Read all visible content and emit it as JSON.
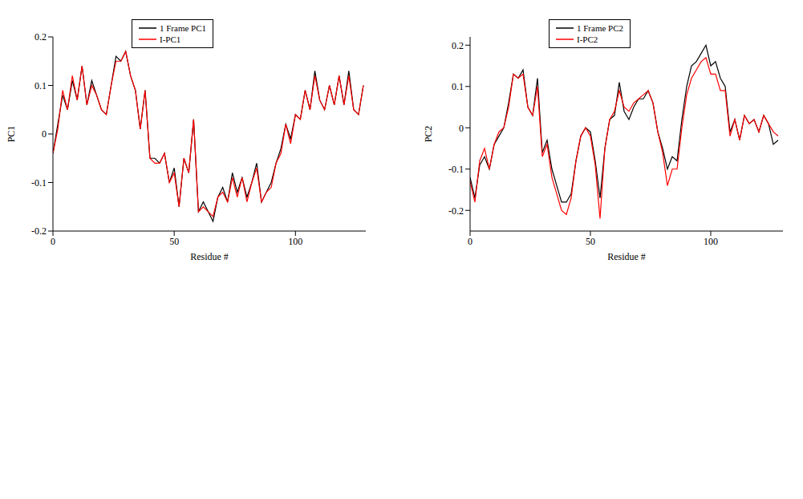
{
  "chart_data": [
    {
      "type": "line",
      "xlabel": "Residue #",
      "ylabel": "PC1",
      "legend": "top",
      "x": [
        0,
        2,
        4,
        6,
        8,
        10,
        12,
        14,
        16,
        18,
        20,
        22,
        24,
        26,
        28,
        30,
        32,
        34,
        36,
        38,
        40,
        42,
        44,
        46,
        48,
        50,
        52,
        54,
        56,
        58,
        60,
        62,
        64,
        66,
        68,
        70,
        72,
        74,
        76,
        78,
        80,
        82,
        84,
        86,
        88,
        90,
        92,
        94,
        96,
        98,
        100,
        102,
        104,
        106,
        108,
        110,
        112,
        114,
        116,
        118,
        120,
        122,
        124,
        126,
        128
      ],
      "xlim": [
        0,
        129
      ],
      "xticks": [
        0,
        50,
        100
      ],
      "ylim": [
        -0.2,
        0.2
      ],
      "yticks": [
        -0.2,
        -0.1,
        0,
        0.1,
        0.2
      ],
      "series": [
        {
          "name": "1 Frame PC1",
          "color": "#000000",
          "values": [
            -0.04,
            0.02,
            0.08,
            0.05,
            0.11,
            0.07,
            0.14,
            0.06,
            0.11,
            0.08,
            0.05,
            0.04,
            0.1,
            0.16,
            0.15,
            0.17,
            0.12,
            0.09,
            0.01,
            0.09,
            -0.05,
            -0.05,
            -0.06,
            -0.04,
            -0.1,
            -0.07,
            -0.15,
            -0.05,
            -0.08,
            0.03,
            -0.16,
            -0.14,
            -0.16,
            -0.18,
            -0.13,
            -0.11,
            -0.14,
            -0.08,
            -0.12,
            -0.09,
            -0.13,
            -0.1,
            -0.06,
            -0.14,
            -0.12,
            -0.1,
            -0.06,
            -0.03,
            0.02,
            -0.01,
            0.04,
            0.03,
            0.09,
            0.05,
            0.13,
            0.07,
            0.05,
            0.1,
            0.06,
            0.12,
            0.06,
            0.13,
            0.05,
            0.04,
            0.1
          ]
        },
        {
          "name": "I-PC1",
          "color": "#ff0000",
          "values": [
            -0.04,
            0.01,
            0.09,
            0.05,
            0.12,
            0.07,
            0.14,
            0.06,
            0.1,
            0.08,
            0.05,
            0.04,
            0.1,
            0.15,
            0.15,
            0.17,
            0.12,
            0.09,
            0.01,
            0.09,
            -0.05,
            -0.06,
            -0.06,
            -0.04,
            -0.1,
            -0.08,
            -0.15,
            -0.05,
            -0.08,
            0.03,
            -0.16,
            -0.15,
            -0.16,
            -0.17,
            -0.13,
            -0.12,
            -0.14,
            -0.09,
            -0.13,
            -0.09,
            -0.14,
            -0.1,
            -0.07,
            -0.14,
            -0.12,
            -0.11,
            -0.06,
            -0.04,
            0.02,
            -0.02,
            0.04,
            0.03,
            0.09,
            0.05,
            0.12,
            0.07,
            0.05,
            0.1,
            0.06,
            0.12,
            0.06,
            0.12,
            0.05,
            0.04,
            0.1
          ]
        }
      ]
    },
    {
      "type": "line",
      "xlabel": "Residue #",
      "ylabel": "PC2",
      "legend": "top",
      "x": [
        0,
        2,
        4,
        6,
        8,
        10,
        12,
        14,
        16,
        18,
        20,
        22,
        24,
        26,
        28,
        30,
        32,
        34,
        36,
        38,
        40,
        42,
        44,
        46,
        48,
        50,
        52,
        54,
        56,
        58,
        60,
        62,
        64,
        66,
        68,
        70,
        72,
        74,
        76,
        78,
        80,
        82,
        84,
        86,
        88,
        90,
        92,
        94,
        96,
        98,
        100,
        102,
        104,
        106,
        108,
        110,
        112,
        114,
        116,
        118,
        120,
        122,
        124,
        126,
        128
      ],
      "xlim": [
        0,
        130
      ],
      "xticks": [
        0,
        50,
        100
      ],
      "ylim": [
        -0.25,
        0.22
      ],
      "yticks": [
        -0.2,
        -0.1,
        0,
        0.1,
        0.2
      ],
      "series": [
        {
          "name": "1 Frame PC2",
          "color": "#000000",
          "values": [
            -0.12,
            -0.17,
            -0.09,
            -0.07,
            -0.1,
            -0.04,
            -0.02,
            0.0,
            0.06,
            0.13,
            0.12,
            0.14,
            0.05,
            0.03,
            0.12,
            -0.06,
            -0.03,
            -0.1,
            -0.14,
            -0.18,
            -0.18,
            -0.16,
            -0.08,
            -0.02,
            0.0,
            -0.01,
            -0.08,
            -0.17,
            -0.05,
            0.02,
            0.03,
            0.11,
            0.04,
            0.02,
            0.05,
            0.07,
            0.07,
            0.09,
            0.06,
            -0.01,
            -0.05,
            -0.1,
            -0.07,
            -0.08,
            0.02,
            0.1,
            0.15,
            0.16,
            0.18,
            0.2,
            0.15,
            0.16,
            0.12,
            0.1,
            -0.01,
            0.02,
            -0.03,
            0.03,
            0.01,
            0.02,
            -0.01,
            0.03,
            0.01,
            -0.04,
            -0.03
          ]
        },
        {
          "name": "I-PC2",
          "color": "#ff0000",
          "values": [
            -0.13,
            -0.18,
            -0.08,
            -0.05,
            -0.1,
            -0.04,
            -0.01,
            0.0,
            0.05,
            0.13,
            0.12,
            0.13,
            0.05,
            0.03,
            0.1,
            -0.07,
            -0.04,
            -0.12,
            -0.16,
            -0.2,
            -0.21,
            -0.17,
            -0.08,
            -0.02,
            0.0,
            -0.02,
            -0.09,
            -0.22,
            -0.05,
            0.02,
            0.04,
            0.09,
            0.05,
            0.04,
            0.06,
            0.07,
            0.08,
            0.09,
            0.06,
            -0.01,
            -0.06,
            -0.14,
            -0.1,
            -0.1,
            0.0,
            0.08,
            0.12,
            0.14,
            0.16,
            0.17,
            0.13,
            0.13,
            0.09,
            0.09,
            -0.02,
            0.02,
            -0.03,
            0.03,
            0.01,
            0.02,
            -0.01,
            0.03,
            0.01,
            -0.01,
            -0.02
          ]
        }
      ]
    }
  ]
}
